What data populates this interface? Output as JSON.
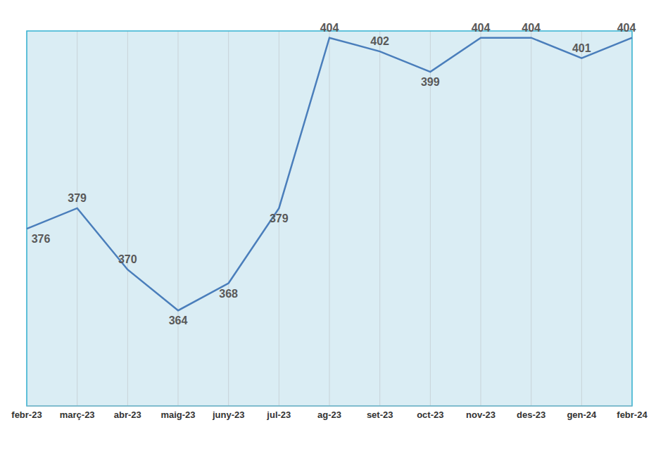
{
  "chart_data": {
    "type": "line",
    "categories": [
      "febr-23",
      "març-23",
      "abr-23",
      "maig-23",
      "juny-23",
      "jul-23",
      "ag-23",
      "set-23",
      "oct-23",
      "nov-23",
      "des-23",
      "gen-24",
      "febr-24"
    ],
    "values": [
      376,
      379,
      370,
      364,
      368,
      379,
      404,
      402,
      399,
      404,
      404,
      401,
      404
    ],
    "color": "#4a7ebb",
    "ylim": [
      350,
      405
    ],
    "grid": true,
    "data_labels": true,
    "tick_labels": "x"
  }
}
